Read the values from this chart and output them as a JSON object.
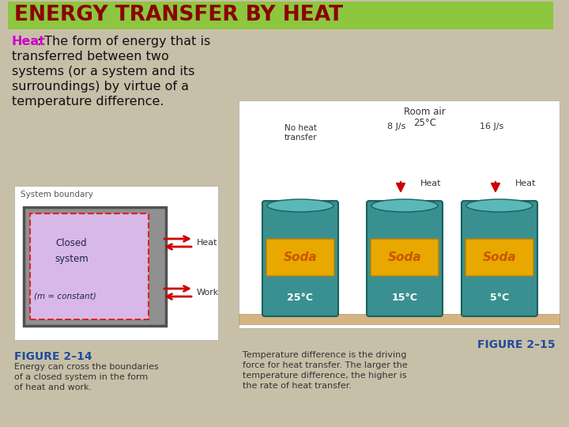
{
  "title": "ENERGY TRANSFER BY HEAT",
  "title_bg_color": "#8DC63F",
  "title_text_color": "#8B0000",
  "bg_color": "#C8BFA8",
  "body_text_intro_bold": "Heat",
  "body_text_intro_colon": ":",
  "body_text_intro_bold_color": "#CC00CC",
  "body_lines": [
    " The form of energy that is",
    "transferred between two",
    "systems (or a system and its",
    "surroundings) by virtue of a",
    "temperature difference."
  ],
  "body_text_color": "#111111",
  "fig1_title": "System boundary",
  "fig1_label1": "Closed",
  "fig1_label2": "system",
  "fig1_label3": "(m = constant)",
  "fig1_heat_label": "Heat",
  "fig1_work_label": "Work",
  "fig1_caption_bold": "FIGURE 2–14",
  "fig1_caption_bold_color": "#1E4D9C",
  "fig1_caption_lines": [
    "Energy can cross the boundaries",
    "of a closed system in the form",
    "of heat and work."
  ],
  "fig2_caption_bold": "FIGURE 2–15",
  "fig2_caption_bold_color": "#1E4D9C",
  "fig2_caption_lines": [
    "Temperature difference is the driving",
    "force for heat transfer. The larger the",
    "temperature difference, the higher is",
    "the rate of heat transfer."
  ],
  "fig2_room_air_line1": "Room air",
  "fig2_room_air_line2": "25°C",
  "fig2_no_heat_line1": "No heat",
  "fig2_no_heat_line2": "transfer",
  "fig2_8js": "8 J/s",
  "fig2_16js": "16 J/s",
  "fig2_heat1": "Heat",
  "fig2_heat2": "Heat",
  "fig2_temp1": "25°C",
  "fig2_temp2": "15°C",
  "fig2_temp3": "5°C",
  "can_color": "#3A9090",
  "can_edge_color": "#1A6060",
  "soda_label_color": "#E8A800",
  "soda_text_color": "#CC5500",
  "arrow_color": "#CC0000"
}
